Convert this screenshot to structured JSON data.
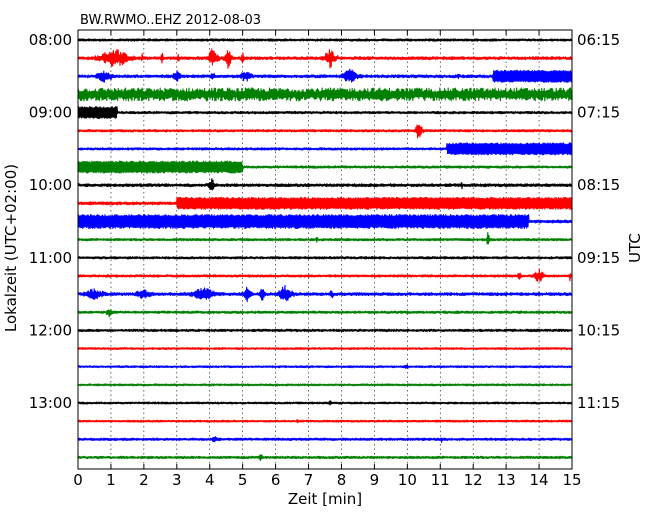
{
  "chart_data": {
    "type": "line",
    "title": "BW.RWMO..EHZ 2012-08-03",
    "xlabel": "Zeit  [min]",
    "ylabel_left": "Lokalzeit (UTC+02:00)",
    "ylabel_right": "UTC",
    "xlim": [
      0,
      15
    ],
    "x_ticks": [
      "0",
      "1",
      "2",
      "3",
      "4",
      "5",
      "6",
      "7",
      "8",
      "9",
      "10",
      "11",
      "12",
      "13",
      "14",
      "15"
    ],
    "left_tick_labels": [
      "08:00",
      "09:00",
      "10:00",
      "11:00",
      "12:00",
      "13:00"
    ],
    "right_tick_labels": [
      "06:15",
      "07:15",
      "08:15",
      "09:15",
      "10:15",
      "11:15"
    ],
    "trace_interval_min": 15,
    "grid": "vertical dotted at every minute",
    "color_cycle": [
      "#000000",
      "#ff0000",
      "#0000ff",
      "#008000"
    ],
    "series": [
      {
        "row": 0,
        "color": "#000000",
        "base": 1.2,
        "events": []
      },
      {
        "row": 1,
        "color": "#ff0000",
        "base": 1.5,
        "events": [
          {
            "start": 0.5,
            "end": 1.7,
            "amp": 11
          },
          {
            "start": 1.9,
            "end": 2.0,
            "amp": 6
          },
          {
            "start": 2.5,
            "end": 2.6,
            "amp": 8
          },
          {
            "start": 3.0,
            "end": 3.1,
            "amp": 6
          },
          {
            "start": 3.9,
            "end": 4.3,
            "amp": 12
          },
          {
            "start": 4.4,
            "end": 4.7,
            "amp": 11
          },
          {
            "start": 4.9,
            "end": 5.1,
            "amp": 6
          },
          {
            "start": 7.4,
            "end": 7.9,
            "amp": 11
          }
        ]
      },
      {
        "row": 2,
        "color": "#0000ff",
        "base": 1.5,
        "events": [
          {
            "start": 0.4,
            "end": 1.2,
            "amp": 6
          },
          {
            "start": 2.8,
            "end": 3.2,
            "amp": 6
          },
          {
            "start": 4.0,
            "end": 4.2,
            "amp": 5
          },
          {
            "start": 4.8,
            "end": 5.4,
            "amp": 6
          },
          {
            "start": 7.9,
            "end": 8.6,
            "amp": 8
          },
          {
            "start": 11.5,
            "end": 11.6,
            "amp": 5
          },
          {
            "start": 12.6,
            "end": 15.0,
            "amp": 6,
            "box": true
          }
        ]
      },
      {
        "row": 3,
        "color": "#008000",
        "base": 6.5,
        "events": []
      },
      {
        "row": 4,
        "color": "#000000",
        "base": 1.2,
        "events": [
          {
            "start": 0.0,
            "end": 1.2,
            "amp": 6,
            "box": true
          }
        ]
      },
      {
        "row": 5,
        "color": "#ff0000",
        "base": 1.2,
        "events": [
          {
            "start": 10.2,
            "end": 10.5,
            "amp": 10
          }
        ]
      },
      {
        "row": 6,
        "color": "#0000ff",
        "base": 1.2,
        "events": [
          {
            "start": 11.2,
            "end": 15.0,
            "amp": 6,
            "box": true
          }
        ]
      },
      {
        "row": 7,
        "color": "#008000",
        "base": 1.2,
        "events": [
          {
            "start": 0.0,
            "end": 5.0,
            "amp": 6,
            "box": true
          }
        ]
      },
      {
        "row": 8,
        "color": "#000000",
        "base": 1.5,
        "events": [
          {
            "start": 3.9,
            "end": 4.2,
            "amp": 8
          },
          {
            "start": 11.6,
            "end": 11.7,
            "amp": 5
          }
        ]
      },
      {
        "row": 9,
        "color": "#ff0000",
        "base": 1.5,
        "events": [
          {
            "start": 3.0,
            "end": 15.0,
            "amp": 6,
            "box": true
          }
        ]
      },
      {
        "row": 10,
        "color": "#0000ff",
        "base": 1.5,
        "events": [
          {
            "start": 0.0,
            "end": 13.7,
            "amp": 7,
            "box": true
          }
        ]
      },
      {
        "row": 11,
        "color": "#008000",
        "base": 1.2,
        "events": [
          {
            "start": 7.2,
            "end": 7.3,
            "amp": 4
          },
          {
            "start": 12.4,
            "end": 12.5,
            "amp": 10
          }
        ]
      },
      {
        "row": 12,
        "color": "#000000",
        "base": 1.2,
        "events": []
      },
      {
        "row": 13,
        "color": "#ff0000",
        "base": 1.2,
        "events": [
          {
            "start": 13.3,
            "end": 13.5,
            "amp": 5
          },
          {
            "start": 13.8,
            "end": 14.2,
            "amp": 8
          },
          {
            "start": 14.9,
            "end": 15.0,
            "amp": 6
          }
        ]
      },
      {
        "row": 14,
        "color": "#0000ff",
        "base": 1.5,
        "events": [
          {
            "start": 0.0,
            "end": 1.0,
            "amp": 6
          },
          {
            "start": 1.5,
            "end": 2.5,
            "amp": 5
          },
          {
            "start": 3.2,
            "end": 4.4,
            "amp": 7
          },
          {
            "start": 5.0,
            "end": 5.3,
            "amp": 9
          },
          {
            "start": 5.5,
            "end": 5.7,
            "amp": 9
          },
          {
            "start": 6.0,
            "end": 6.6,
            "amp": 10
          },
          {
            "start": 7.6,
            "end": 7.8,
            "amp": 5
          }
        ]
      },
      {
        "row": 15,
        "color": "#008000",
        "base": 1.2,
        "events": [
          {
            "start": 0.8,
            "end": 1.1,
            "amp": 5
          }
        ]
      },
      {
        "row": 16,
        "color": "#000000",
        "base": 1.2,
        "events": []
      },
      {
        "row": 17,
        "color": "#ff0000",
        "base": 1.0,
        "events": []
      },
      {
        "row": 18,
        "color": "#0000ff",
        "base": 1.0,
        "events": [
          {
            "start": 9.8,
            "end": 10.1,
            "amp": 3
          }
        ]
      },
      {
        "row": 19,
        "color": "#008000",
        "base": 1.0,
        "events": []
      },
      {
        "row": 20,
        "color": "#000000",
        "base": 1.0,
        "events": [
          {
            "start": 7.6,
            "end": 7.7,
            "amp": 4
          }
        ]
      },
      {
        "row": 21,
        "color": "#ff0000",
        "base": 1.0,
        "events": [
          {
            "start": 6.6,
            "end": 6.7,
            "amp": 3
          }
        ]
      },
      {
        "row": 22,
        "color": "#0000ff",
        "base": 1.2,
        "events": [
          {
            "start": 4.0,
            "end": 4.3,
            "amp": 4
          },
          {
            "start": 11.0,
            "end": 11.1,
            "amp": 4
          }
        ]
      },
      {
        "row": 23,
        "color": "#008000",
        "base": 1.2,
        "events": [
          {
            "start": 5.5,
            "end": 5.6,
            "amp": 8
          }
        ]
      }
    ]
  }
}
